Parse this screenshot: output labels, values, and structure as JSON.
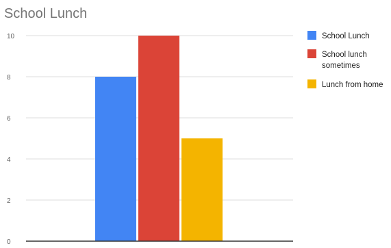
{
  "chart_data": {
    "type": "bar",
    "title": "School Lunch",
    "xlabel": "",
    "ylabel": "",
    "ylim": [
      0,
      10
    ],
    "yticks": [
      0,
      2,
      4,
      6,
      8,
      10
    ],
    "ytick_labels": [
      "0",
      "2",
      "4",
      "6",
      "8",
      "10"
    ],
    "grid": true,
    "legend_position": "right",
    "categories": [
      ""
    ],
    "series": [
      {
        "name": "School Lunch",
        "values": [
          8
        ],
        "color": "#4285f4"
      },
      {
        "name": "School lunch sometimes",
        "values": [
          10
        ],
        "color": "#db4437"
      },
      {
        "name": "Lunch from home",
        "values": [
          5
        ],
        "color": "#f4b400"
      }
    ]
  }
}
